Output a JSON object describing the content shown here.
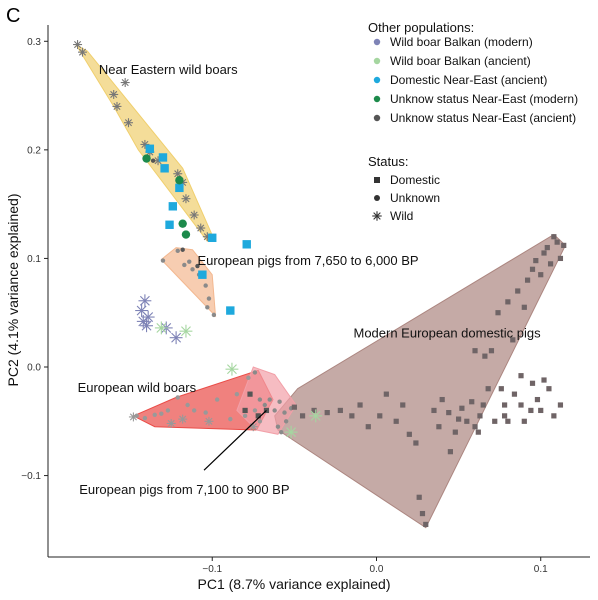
{
  "chart_data": {
    "type": "scatter",
    "panel_letter": "C",
    "xlabel": "PC1 (8.7% variance explained)",
    "ylabel": "PC2 (4.1% variance explained)",
    "xlim": [
      -0.2,
      0.13
    ],
    "ylim": [
      -0.175,
      0.315
    ],
    "x_ticks": [
      {
        "value": -0.1,
        "label": "−0.1"
      },
      {
        "value": 0.0,
        "label": "0.0"
      },
      {
        "value": 0.1,
        "label": "0.1"
      }
    ],
    "y_ticks": [
      {
        "value": -0.1,
        "label": "−0.1"
      },
      {
        "value": 0.0,
        "label": "0.0"
      },
      {
        "value": 0.1,
        "label": "0.1"
      },
      {
        "value": 0.2,
        "label": "0.2"
      },
      {
        "value": 0.3,
        "label": "0.3"
      }
    ],
    "grid": false,
    "legend": {
      "position": "top-right",
      "populations_title": "Other populations:",
      "populations": [
        {
          "label": "Wild boar Balkan (modern)",
          "color": "#7e83b6"
        },
        {
          "label": "Wild boar Balkan (ancient)",
          "color": "#a5d6a0"
        },
        {
          "label": "Domestic Near-East (ancient)",
          "color": "#1ea9dd"
        },
        {
          "label": "Unknow status Near-East (modern)",
          "color": "#1c8a4b"
        },
        {
          "label": "Unknow status Near-East (ancient)",
          "color": "#555555"
        }
      ],
      "status_title": "Status:",
      "status": [
        {
          "label": "Domestic",
          "shape": "square"
        },
        {
          "label": "Unknown",
          "shape": "circle"
        },
        {
          "label": "Wild",
          "shape": "asterisk"
        }
      ]
    },
    "regions": [
      {
        "label": "Near Eastern wild boars",
        "color": "#f0cf6d",
        "hull": [
          [
            -0.183,
            0.297
          ],
          [
            -0.176,
            0.291
          ],
          [
            -0.118,
            0.183
          ],
          [
            -0.099,
            0.118
          ],
          [
            -0.103,
            0.116
          ],
          [
            -0.13,
            0.17
          ],
          [
            -0.145,
            0.2
          ],
          [
            -0.16,
            0.24
          ]
        ]
      },
      {
        "label": "European pigs from 7,650 to 6,000 BP",
        "color": "#f3b890",
        "hull": [
          [
            -0.122,
            0.11
          ],
          [
            -0.131,
            0.099
          ],
          [
            -0.098,
            0.047
          ],
          [
            -0.1,
            0.085
          ],
          [
            -0.112,
            0.108
          ]
        ]
      },
      {
        "label": "Modern European domestic pigs",
        "color": "#ac8680",
        "hull": [
          [
            -0.048,
            -0.02
          ],
          [
            0.108,
            0.122
          ],
          [
            0.115,
            0.112
          ],
          [
            0.03,
            -0.148
          ],
          [
            -0.06,
            -0.058
          ],
          [
            -0.062,
            -0.045
          ]
        ]
      },
      {
        "label": "European wild boars",
        "color": "#ea4c47",
        "hull": [
          [
            -0.148,
            -0.045
          ],
          [
            -0.122,
            -0.028
          ],
          [
            -0.072,
            -0.003
          ],
          [
            -0.063,
            -0.03
          ],
          [
            -0.073,
            -0.058
          ],
          [
            -0.135,
            -0.055
          ]
        ]
      },
      {
        "label": "European pigs from 7,100 to 900 BP",
        "color": "#f2a0a8",
        "hull": [
          [
            -0.075,
            0.0
          ],
          [
            -0.062,
            -0.007
          ],
          [
            -0.049,
            -0.035
          ],
          [
            -0.06,
            -0.062
          ],
          [
            -0.073,
            -0.058
          ],
          [
            -0.085,
            -0.04
          ]
        ]
      }
    ],
    "annotation_arrow": {
      "label": "European pigs from 7,100 to 900 BP",
      "from": [
        -0.105,
        -0.095
      ],
      "to": [
        -0.067,
        -0.04
      ]
    },
    "series": [
      {
        "population": "Near Eastern wild boars",
        "status": "Wild",
        "color": "#777777",
        "points": [
          [
            -0.182,
            0.297
          ],
          [
            -0.179,
            0.29
          ],
          [
            -0.153,
            0.262
          ],
          [
            -0.16,
            0.251
          ],
          [
            -0.158,
            0.24
          ],
          [
            -0.151,
            0.225
          ],
          [
            -0.141,
            0.205
          ],
          [
            -0.138,
            0.198
          ],
          [
            -0.133,
            0.19
          ],
          [
            -0.121,
            0.178
          ],
          [
            -0.118,
            0.17
          ],
          [
            -0.116,
            0.155
          ],
          [
            -0.111,
            0.14
          ],
          [
            -0.107,
            0.128
          ],
          [
            -0.103,
            0.12
          ]
        ]
      },
      {
        "population": "European pigs from 7,650 to 6,000 BP",
        "status": "Unknown",
        "color": "#8a8a8a",
        "points": [
          [
            -0.121,
            0.107
          ],
          [
            -0.13,
            0.098
          ],
          [
            -0.114,
            0.097
          ],
          [
            -0.117,
            0.094
          ],
          [
            -0.112,
            0.09
          ],
          [
            -0.108,
            0.085
          ],
          [
            -0.104,
            0.075
          ],
          [
            -0.102,
            0.063
          ],
          [
            -0.103,
            0.055
          ],
          [
            -0.099,
            0.048
          ]
        ]
      },
      {
        "population": "European wild boars",
        "status": "Unknown",
        "color": "#999999",
        "points": [
          [
            -0.146,
            -0.045
          ],
          [
            -0.141,
            -0.047
          ],
          [
            -0.135,
            -0.044
          ],
          [
            -0.131,
            -0.043
          ],
          [
            -0.127,
            -0.04
          ],
          [
            -0.121,
            -0.028
          ],
          [
            -0.115,
            -0.035
          ],
          [
            -0.111,
            -0.04
          ],
          [
            -0.104,
            -0.042
          ],
          [
            -0.097,
            -0.03
          ],
          [
            -0.089,
            -0.048
          ],
          [
            -0.085,
            -0.025
          ],
          [
            -0.08,
            -0.045
          ],
          [
            -0.078,
            -0.01
          ],
          [
            -0.074,
            -0.04
          ],
          [
            -0.071,
            -0.05
          ]
        ]
      },
      {
        "population": "European wild boars",
        "status": "Wild",
        "color": "#999999",
        "points": [
          [
            -0.148,
            -0.046
          ],
          [
            -0.125,
            -0.052
          ],
          [
            -0.118,
            -0.048
          ],
          [
            -0.102,
            -0.05
          ],
          [
            -0.075,
            -0.055
          ]
        ]
      },
      {
        "population": "European pigs from 7,100 to 900 BP",
        "status": "Unknown",
        "color": "#8a8a8a",
        "points": [
          [
            -0.074,
            -0.005
          ],
          [
            -0.071,
            -0.03
          ],
          [
            -0.068,
            -0.035
          ],
          [
            -0.065,
            -0.03
          ],
          [
            -0.062,
            -0.04
          ],
          [
            -0.059,
            -0.032
          ],
          [
            -0.056,
            -0.042
          ],
          [
            -0.055,
            -0.05
          ],
          [
            -0.06,
            -0.055
          ],
          [
            -0.052,
            -0.038
          ],
          [
            -0.058,
            -0.06
          ]
        ]
      },
      {
        "population": "European pigs from 7,100 to 900 BP",
        "status": "Domestic",
        "color": "#555555",
        "points": [
          [
            -0.08,
            -0.04
          ],
          [
            -0.077,
            -0.025
          ],
          [
            -0.072,
            -0.045
          ],
          [
            -0.067,
            -0.04
          ]
        ]
      },
      {
        "population": "Modern European domestic pigs",
        "status": "Domestic",
        "color": "#6f6466",
        "points": [
          [
            -0.05,
            -0.037
          ],
          [
            -0.045,
            -0.045
          ],
          [
            -0.038,
            -0.04
          ],
          [
            -0.03,
            -0.042
          ],
          [
            -0.022,
            -0.04
          ],
          [
            -0.015,
            -0.045
          ],
          [
            -0.01,
            -0.035
          ],
          [
            -0.005,
            -0.055
          ],
          [
            0.002,
            -0.045
          ],
          [
            0.006,
            -0.025
          ],
          [
            0.012,
            -0.05
          ],
          [
            0.016,
            -0.035
          ],
          [
            0.02,
            -0.062
          ],
          [
            0.024,
            -0.07
          ],
          [
            0.026,
            -0.12
          ],
          [
            0.028,
            -0.135
          ],
          [
            0.03,
            -0.145
          ],
          [
            0.035,
            -0.04
          ],
          [
            0.038,
            -0.055
          ],
          [
            0.04,
            -0.03
          ],
          [
            0.044,
            -0.042
          ],
          [
            0.048,
            -0.06
          ],
          [
            0.05,
            -0.048
          ],
          [
            0.052,
            -0.038
          ],
          [
            0.055,
            -0.05
          ],
          [
            0.058,
            -0.032
          ],
          [
            0.06,
            -0.055
          ],
          [
            0.063,
            -0.045
          ],
          [
            0.065,
            -0.035
          ],
          [
            0.068,
            -0.02
          ],
          [
            0.07,
            0.015
          ],
          [
            0.072,
            -0.05
          ],
          [
            0.074,
            0.05
          ],
          [
            0.078,
            -0.035
          ],
          [
            0.08,
            0.06
          ],
          [
            0.083,
            0.025
          ],
          [
            0.086,
            0.07
          ],
          [
            0.088,
            -0.008
          ],
          [
            0.09,
            0.055
          ],
          [
            0.092,
            0.08
          ],
          [
            0.095,
            0.09
          ],
          [
            0.097,
            0.098
          ],
          [
            0.1,
            0.085
          ],
          [
            0.102,
            0.105
          ],
          [
            0.104,
            0.11
          ],
          [
            0.106,
            0.095
          ],
          [
            0.108,
            0.12
          ],
          [
            0.11,
            0.115
          ],
          [
            0.112,
            0.1
          ],
          [
            0.114,
            0.112
          ],
          [
            0.1,
            -0.04
          ],
          [
            0.098,
            -0.03
          ],
          [
            0.095,
            -0.015
          ],
          [
            0.105,
            -0.02
          ],
          [
            0.108,
            -0.045
          ],
          [
            0.112,
            -0.035
          ],
          [
            0.102,
            -0.012
          ],
          [
            0.066,
            0.01
          ],
          [
            0.06,
            0.015
          ],
          [
            0.09,
            -0.05
          ],
          [
            0.08,
            -0.05
          ],
          [
            0.084,
            -0.025
          ],
          [
            0.076,
            -0.02
          ],
          [
            0.078,
            -0.045
          ],
          [
            0.088,
            -0.035
          ],
          [
            0.094,
            -0.04
          ],
          [
            0.062,
            -0.06
          ],
          [
            0.045,
            -0.078
          ]
        ]
      },
      {
        "population": "Wild boar Balkan (modern)",
        "status": "Wild",
        "color": "#7e83b6",
        "points": [
          [
            -0.141,
            0.061
          ],
          [
            -0.143,
            0.052
          ],
          [
            -0.139,
            0.046
          ],
          [
            -0.142,
            0.042
          ],
          [
            -0.14,
            0.038
          ],
          [
            -0.128,
            0.036
          ],
          [
            -0.122,
            0.027
          ]
        ]
      },
      {
        "population": "Wild boar Balkan (ancient)",
        "status": "Wild",
        "color": "#a5d6a0",
        "points": [
          [
            -0.131,
            0.036
          ],
          [
            -0.116,
            0.033
          ],
          [
            -0.088,
            -0.002
          ],
          [
            -0.052,
            -0.06
          ],
          [
            -0.037,
            -0.045
          ]
        ]
      },
      {
        "population": "Domestic Near-East (ancient)",
        "status": "Domestic",
        "color": "#1ea9dd",
        "points": [
          [
            -0.138,
            0.201
          ],
          [
            -0.13,
            0.193
          ],
          [
            -0.129,
            0.183
          ],
          [
            -0.12,
            0.165
          ],
          [
            -0.124,
            0.148
          ],
          [
            -0.126,
            0.131
          ],
          [
            -0.1,
            0.119
          ],
          [
            -0.079,
            0.113
          ],
          [
            -0.106,
            0.085
          ],
          [
            -0.089,
            0.052
          ]
        ]
      },
      {
        "population": "Unknow status Near-East (modern)",
        "status": "Unknown",
        "color": "#1c8a4b",
        "points": [
          [
            -0.14,
            0.192
          ],
          [
            -0.12,
            0.172
          ],
          [
            -0.118,
            0.132
          ],
          [
            -0.116,
            0.122
          ]
        ]
      },
      {
        "population": "Unknow status Near-East (ancient)",
        "status": "Unknown",
        "color": "#555555",
        "points": [
          [
            -0.136,
            0.19
          ],
          [
            -0.118,
            0.108
          ],
          [
            -0.109,
            0.093
          ]
        ]
      }
    ],
    "region_label_positions": {
      "Near Eastern wild boars": [
        -0.169,
        0.27
      ],
      "European pigs from 7,650 to 6,000 BP": [
        -0.109,
        0.094
      ],
      "Modern European domestic pigs": [
        -0.014,
        0.027
      ],
      "European wild boars": [
        -0.182,
        -0.023
      ],
      "European pigs from 7,100 to 900 BP": [
        -0.181,
        -0.117
      ]
    }
  }
}
